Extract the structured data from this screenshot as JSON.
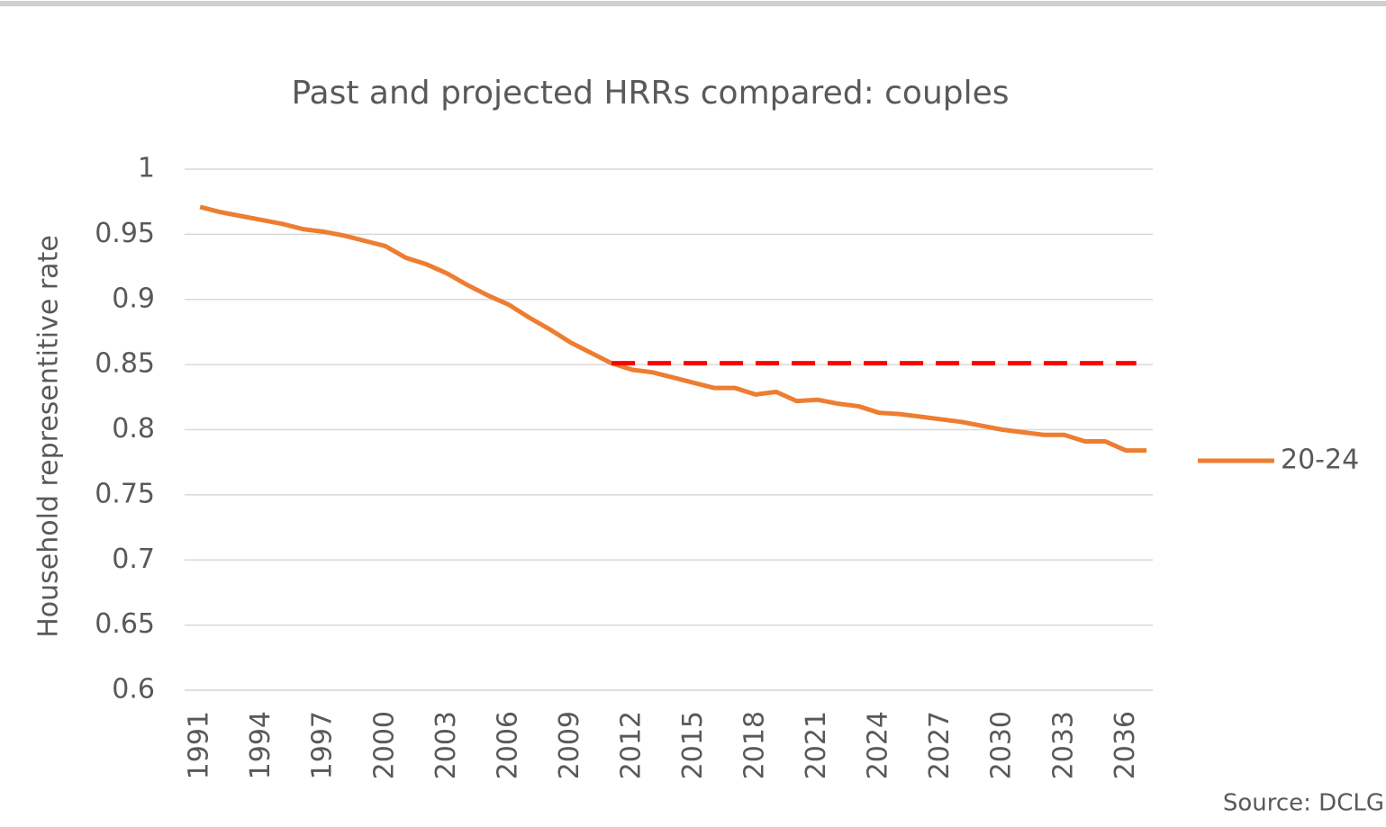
{
  "chart_data": {
    "type": "line",
    "title": "Past and projected HRRs compared: couples",
    "y_label": "Household representitive rate",
    "source": "Source: DCLG",
    "x": [
      1991,
      1992,
      1993,
      1994,
      1995,
      1996,
      1997,
      1998,
      1999,
      2000,
      2001,
      2002,
      2003,
      2004,
      2005,
      2006,
      2007,
      2008,
      2009,
      2010,
      2011,
      2012,
      2013,
      2014,
      2015,
      2016,
      2017,
      2018,
      2019,
      2020,
      2021,
      2022,
      2023,
      2024,
      2025,
      2026,
      2027,
      2028,
      2029,
      2030,
      2031,
      2032,
      2033,
      2034,
      2035,
      2036,
      2037
    ],
    "series": [
      {
        "name": "20-24",
        "color": "#ed7d31",
        "values": [
          0.971,
          0.967,
          0.964,
          0.961,
          0.958,
          0.954,
          0.952,
          0.949,
          0.945,
          0.941,
          0.932,
          0.927,
          0.92,
          0.911,
          0.903,
          0.896,
          0.886,
          0.877,
          0.867,
          0.859,
          0.851,
          0.846,
          0.844,
          0.84,
          0.836,
          0.832,
          0.832,
          0.827,
          0.829,
          0.822,
          0.823,
          0.82,
          0.818,
          0.813,
          0.812,
          0.81,
          0.808,
          0.806,
          0.803,
          0.8,
          0.798,
          0.796,
          0.796,
          0.791,
          0.791,
          0.784,
          0.784
        ]
      }
    ],
    "reference_line": {
      "y": 0.851,
      "x": [
        2011,
        2036.5
      ],
      "color": "#ff0000",
      "dashed": true
    },
    "xlim": [
      1990.25,
      2037.3
    ],
    "xticks": [
      1991,
      1994,
      1997,
      2000,
      2003,
      2006,
      2009,
      2012,
      2015,
      2018,
      2021,
      2024,
      2027,
      2030,
      2033,
      2036
    ],
    "ylim": [
      0.6,
      1
    ],
    "yticks": [
      1,
      0.95,
      0.9,
      0.85,
      0.8,
      0.75,
      0.7,
      0.65,
      0.6
    ],
    "grid": true,
    "legend": "right"
  }
}
